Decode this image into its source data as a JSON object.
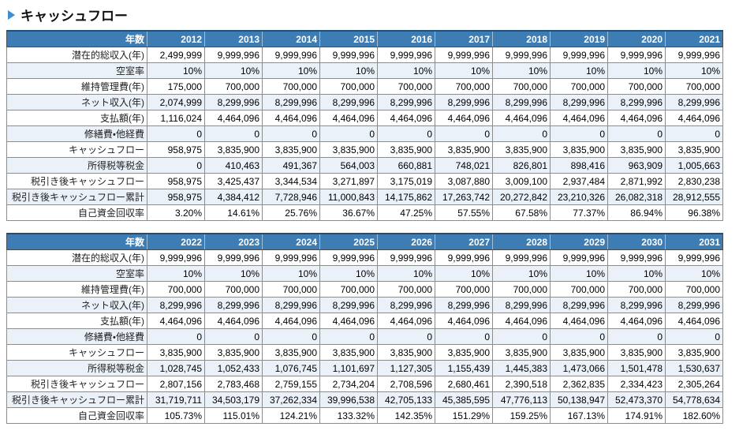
{
  "page": {
    "title": "キャッシュフロー"
  },
  "colors": {
    "header_bg": "#3e7db3",
    "header_text": "#ffffff",
    "header_top_border": "#1f4e79",
    "stripe_bg": "#eaf1f8",
    "grid_border": "#8c8c8c",
    "title_icon_blue": "#3e8ed0"
  },
  "icons": {
    "title_bullet": "play-triangle-icon"
  },
  "tables": [
    {
      "corner_label": "年数",
      "years": [
        "2012",
        "2013",
        "2014",
        "2015",
        "2016",
        "2017",
        "2018",
        "2019",
        "2020",
        "2021"
      ],
      "rows": [
        {
          "label": "潜在的総収入(年)",
          "values": [
            "2,499,999",
            "9,999,996",
            "9,999,996",
            "9,999,996",
            "9,999,996",
            "9,999,996",
            "9,999,996",
            "9,999,996",
            "9,999,996",
            "9,999,996"
          ]
        },
        {
          "label": "空室率",
          "values": [
            "10%",
            "10%",
            "10%",
            "10%",
            "10%",
            "10%",
            "10%",
            "10%",
            "10%",
            "10%"
          ]
        },
        {
          "label": "維持管理費(年)",
          "values": [
            "175,000",
            "700,000",
            "700,000",
            "700,000",
            "700,000",
            "700,000",
            "700,000",
            "700,000",
            "700,000",
            "700,000"
          ]
        },
        {
          "label": "ネット収入(年)",
          "values": [
            "2,074,999",
            "8,299,996",
            "8,299,996",
            "8,299,996",
            "8,299,996",
            "8,299,996",
            "8,299,996",
            "8,299,996",
            "8,299,996",
            "8,299,996"
          ]
        },
        {
          "label": "支払額(年)",
          "values": [
            "1,116,024",
            "4,464,096",
            "4,464,096",
            "4,464,096",
            "4,464,096",
            "4,464,096",
            "4,464,096",
            "4,464,096",
            "4,464,096",
            "4,464,096"
          ]
        },
        {
          "label": "修繕費・他経費",
          "values": [
            "0",
            "0",
            "0",
            "0",
            "0",
            "0",
            "0",
            "0",
            "0",
            "0"
          ]
        },
        {
          "label": "キャッシュフロー",
          "values": [
            "958,975",
            "3,835,900",
            "3,835,900",
            "3,835,900",
            "3,835,900",
            "3,835,900",
            "3,835,900",
            "3,835,900",
            "3,835,900",
            "3,835,900"
          ]
        },
        {
          "label": "所得税等税金",
          "values": [
            "0",
            "410,463",
            "491,367",
            "564,003",
            "660,881",
            "748,021",
            "826,801",
            "898,416",
            "963,909",
            "1,005,663"
          ]
        },
        {
          "label": "税引き後キャッシュフロー",
          "values": [
            "958,975",
            "3,425,437",
            "3,344,534",
            "3,271,897",
            "3,175,019",
            "3,087,880",
            "3,009,100",
            "2,937,484",
            "2,871,992",
            "2,830,238"
          ]
        },
        {
          "label": "税引き後キャッシュフロー累計",
          "values": [
            "958,975",
            "4,384,412",
            "7,728,946",
            "11,000,843",
            "14,175,862",
            "17,263,742",
            "20,272,842",
            "23,210,326",
            "26,082,318",
            "28,912,555"
          ]
        },
        {
          "label": "自己資金回収率",
          "values": [
            "3.20%",
            "14.61%",
            "25.76%",
            "36.67%",
            "47.25%",
            "57.55%",
            "67.58%",
            "77.37%",
            "86.94%",
            "96.38%"
          ]
        }
      ]
    },
    {
      "corner_label": "年数",
      "years": [
        "2022",
        "2023",
        "2024",
        "2025",
        "2026",
        "2027",
        "2028",
        "2029",
        "2030",
        "2031"
      ],
      "rows": [
        {
          "label": "潜在的総収入(年)",
          "values": [
            "9,999,996",
            "9,999,996",
            "9,999,996",
            "9,999,996",
            "9,999,996",
            "9,999,996",
            "9,999,996",
            "9,999,996",
            "9,999,996",
            "9,999,996"
          ]
        },
        {
          "label": "空室率",
          "values": [
            "10%",
            "10%",
            "10%",
            "10%",
            "10%",
            "10%",
            "10%",
            "10%",
            "10%",
            "10%"
          ]
        },
        {
          "label": "維持管理費(年)",
          "values": [
            "700,000",
            "700,000",
            "700,000",
            "700,000",
            "700,000",
            "700,000",
            "700,000",
            "700,000",
            "700,000",
            "700,000"
          ]
        },
        {
          "label": "ネット収入(年)",
          "values": [
            "8,299,996",
            "8,299,996",
            "8,299,996",
            "8,299,996",
            "8,299,996",
            "8,299,996",
            "8,299,996",
            "8,299,996",
            "8,299,996",
            "8,299,996"
          ]
        },
        {
          "label": "支払額(年)",
          "values": [
            "4,464,096",
            "4,464,096",
            "4,464,096",
            "4,464,096",
            "4,464,096",
            "4,464,096",
            "4,464,096",
            "4,464,096",
            "4,464,096",
            "4,464,096"
          ]
        },
        {
          "label": "修繕費・他経費",
          "values": [
            "0",
            "0",
            "0",
            "0",
            "0",
            "0",
            "0",
            "0",
            "0",
            "0"
          ]
        },
        {
          "label": "キャッシュフロー",
          "values": [
            "3,835,900",
            "3,835,900",
            "3,835,900",
            "3,835,900",
            "3,835,900",
            "3,835,900",
            "3,835,900",
            "3,835,900",
            "3,835,900",
            "3,835,900"
          ]
        },
        {
          "label": "所得税等税金",
          "values": [
            "1,028,745",
            "1,052,433",
            "1,076,745",
            "1,101,697",
            "1,127,305",
            "1,155,439",
            "1,445,383",
            "1,473,066",
            "1,501,478",
            "1,530,637"
          ]
        },
        {
          "label": "税引き後キャッシュフロー",
          "values": [
            "2,807,156",
            "2,783,468",
            "2,759,155",
            "2,734,204",
            "2,708,596",
            "2,680,461",
            "2,390,518",
            "2,362,835",
            "2,334,423",
            "2,305,264"
          ]
        },
        {
          "label": "税引き後キャッシュフロー累計",
          "values": [
            "31,719,711",
            "34,503,179",
            "37,262,334",
            "39,996,538",
            "42,705,133",
            "45,385,595",
            "47,776,113",
            "50,138,947",
            "52,473,370",
            "54,778,634"
          ]
        },
        {
          "label": "自己資金回収率",
          "values": [
            "105.73%",
            "115.01%",
            "124.21%",
            "133.32%",
            "142.35%",
            "151.29%",
            "159.25%",
            "167.13%",
            "174.91%",
            "182.60%"
          ]
        }
      ]
    }
  ]
}
